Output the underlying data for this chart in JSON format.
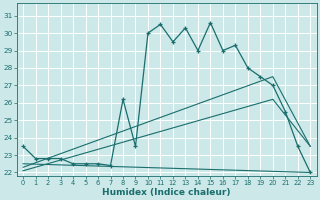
{
  "xlabel": "Humidex (Indice chaleur)",
  "bg_color": "#cce8e8",
  "grid_color": "#ffffff",
  "line_color": "#1a6e6e",
  "xlim": [
    -0.5,
    23.5
  ],
  "ylim": [
    21.8,
    31.7
  ],
  "yticks": [
    22,
    23,
    24,
    25,
    26,
    27,
    28,
    29,
    30,
    31
  ],
  "xticks": [
    0,
    1,
    2,
    3,
    4,
    5,
    6,
    7,
    8,
    9,
    10,
    11,
    12,
    13,
    14,
    15,
    16,
    17,
    18,
    19,
    20,
    21,
    22,
    23
  ],
  "line1_x": [
    0,
    1,
    2,
    3,
    4,
    5,
    6,
    7,
    8,
    9,
    10,
    11,
    12,
    13,
    14,
    15,
    16,
    17,
    18,
    19,
    20,
    21,
    22,
    23
  ],
  "line1_y": [
    23.5,
    22.8,
    22.8,
    22.8,
    22.5,
    22.5,
    22.5,
    22.4,
    26.2,
    23.5,
    30.0,
    30.5,
    29.5,
    30.3,
    29.0,
    30.6,
    29.0,
    29.3,
    28.0,
    27.5,
    27.0,
    25.5,
    23.5,
    22.0
  ],
  "line2_x": [
    0,
    20,
    23
  ],
  "line2_y": [
    22.3,
    27.5,
    23.5
  ],
  "line3_x": [
    0,
    20,
    23
  ],
  "line3_y": [
    22.1,
    26.2,
    23.5
  ],
  "line4_x": [
    0,
    23
  ],
  "line4_y": [
    22.5,
    22.0
  ]
}
